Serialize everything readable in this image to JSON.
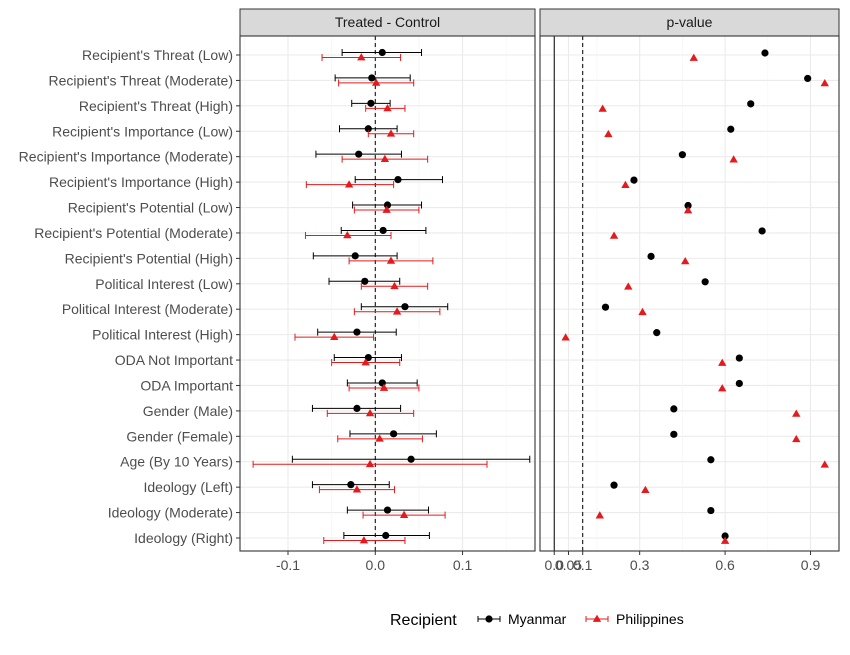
{
  "chart_data": {
    "type": "scatter",
    "panels": [
      {
        "title": "Treated - Control",
        "xlim": [
          -0.155,
          0.183
        ],
        "xticks": [
          -0.1,
          0.0,
          0.1
        ],
        "xtick_labels": [
          "-0.1",
          "0.0",
          "0.1"
        ],
        "vline": 0.0
      },
      {
        "title": "p-value",
        "xlim": [
          -0.05,
          1.0
        ],
        "xticks": [
          0.0,
          0.05,
          0.1,
          0.3,
          0.6,
          0.9
        ],
        "xtick_labels": [
          "0.0",
          "0.05",
          "0.1",
          "0.3",
          "0.6",
          "0.9"
        ],
        "vline_solid": 0.0,
        "vline_dashed": 0.1
      }
    ],
    "categories": [
      "Recipient's Threat (Low)",
      "Recipient's Threat (Moderate)",
      "Recipient's Threat (High)",
      "Recipient's Importance (Low)",
      "Recipient's Importance (Moderate)",
      "Recipient's Importance (High)",
      "Recipient's Potential (Low)",
      "Recipient's Potential (Moderate)",
      "Recipient's Potential (High)",
      "Political Interest (Low)",
      "Political Interest (Moderate)",
      "Political Interest (High)",
      "ODA Not Important",
      "ODA Important",
      "Gender (Male)",
      "Gender (Female)",
      "Age (By 10 Years)",
      "Ideology (Left)",
      "Ideology (Moderate)",
      "Ideology (Right)"
    ],
    "series": [
      {
        "name": "Myanmar",
        "color": "#000000",
        "marker": "circle",
        "estimate": [
          0.008,
          -0.004,
          -0.005,
          -0.008,
          -0.019,
          0.026,
          0.014,
          0.009,
          -0.023,
          -0.012,
          0.034,
          -0.021,
          -0.008,
          0.008,
          -0.021,
          0.021,
          0.041,
          -0.028,
          0.014,
          0.012
        ],
        "lower": [
          -0.038,
          -0.046,
          -0.027,
          -0.041,
          -0.068,
          -0.023,
          -0.026,
          -0.039,
          -0.071,
          -0.053,
          -0.016,
          -0.066,
          -0.047,
          -0.032,
          -0.072,
          -0.029,
          -0.095,
          -0.072,
          -0.032,
          -0.036
        ],
        "upper": [
          0.053,
          0.04,
          0.017,
          0.025,
          0.03,
          0.077,
          0.053,
          0.058,
          0.025,
          0.028,
          0.083,
          0.024,
          0.03,
          0.048,
          0.029,
          0.07,
          0.177,
          0.016,
          0.061,
          0.062
        ],
        "p_value": [
          0.74,
          0.89,
          0.69,
          0.62,
          0.45,
          0.28,
          0.47,
          0.73,
          0.34,
          0.53,
          0.18,
          0.36,
          0.65,
          0.65,
          0.42,
          0.42,
          0.55,
          0.21,
          0.55,
          0.6
        ]
      },
      {
        "name": "Philippines",
        "color": "#e41a1c",
        "marker": "triangle",
        "estimate": [
          -0.016,
          0.001,
          0.014,
          0.018,
          0.011,
          -0.03,
          0.013,
          -0.032,
          0.018,
          0.022,
          0.025,
          -0.047,
          -0.011,
          0.01,
          -0.006,
          0.005,
          -0.006,
          -0.021,
          0.033,
          -0.013
        ],
        "lower": [
          -0.061,
          -0.042,
          -0.011,
          -0.008,
          -0.038,
          -0.079,
          -0.024,
          -0.08,
          -0.03,
          -0.016,
          -0.024,
          -0.092,
          -0.05,
          -0.03,
          -0.055,
          -0.043,
          -0.14,
          -0.064,
          -0.014,
          -0.059
        ],
        "upper": [
          0.029,
          0.044,
          0.034,
          0.044,
          0.06,
          0.021,
          0.05,
          0.018,
          0.066,
          0.06,
          0.074,
          -0.002,
          0.028,
          0.05,
          0.044,
          0.054,
          0.128,
          0.022,
          0.08,
          0.034
        ],
        "p_value": [
          0.49,
          0.95,
          0.17,
          0.19,
          0.63,
          0.25,
          0.47,
          0.21,
          0.46,
          0.26,
          0.31,
          0.04,
          0.59,
          0.59,
          0.85,
          0.85,
          0.95,
          0.32,
          0.16,
          0.6
        ]
      }
    ],
    "legend": {
      "title": "Recipient",
      "position": "bottom"
    },
    "grid": true
  }
}
